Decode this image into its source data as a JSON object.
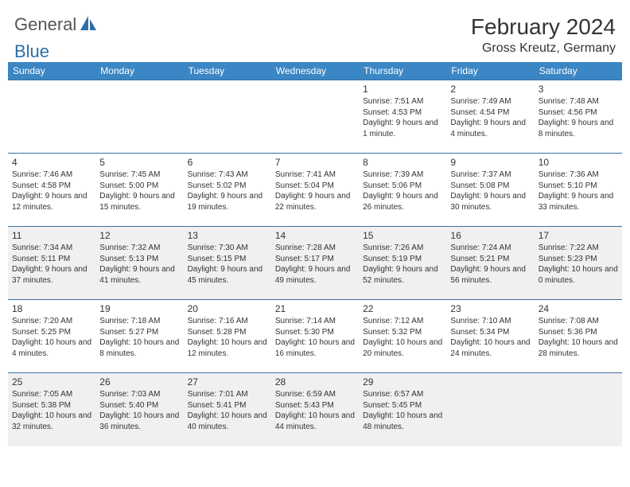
{
  "logo": {
    "part1": "General",
    "part2": "Blue"
  },
  "title": "February 2024",
  "location": "Gross Kreutz, Germany",
  "colors": {
    "header_bg": "#3b86c4",
    "border": "#3b6fa0",
    "alt_bg": "#f0f0f0",
    "logo_blue": "#2d6ea8"
  },
  "dayHeaders": [
    "Sunday",
    "Monday",
    "Tuesday",
    "Wednesday",
    "Thursday",
    "Friday",
    "Saturday"
  ],
  "weeks": [
    [
      {
        "day": "",
        "sunrise": "",
        "sunset": "",
        "daylight": "",
        "alt": false
      },
      {
        "day": "",
        "sunrise": "",
        "sunset": "",
        "daylight": "",
        "alt": false
      },
      {
        "day": "",
        "sunrise": "",
        "sunset": "",
        "daylight": "",
        "alt": false
      },
      {
        "day": "",
        "sunrise": "",
        "sunset": "",
        "daylight": "",
        "alt": false
      },
      {
        "day": "1",
        "sunrise": "Sunrise: 7:51 AM",
        "sunset": "Sunset: 4:53 PM",
        "daylight": "Daylight: 9 hours and 1 minute.",
        "alt": false
      },
      {
        "day": "2",
        "sunrise": "Sunrise: 7:49 AM",
        "sunset": "Sunset: 4:54 PM",
        "daylight": "Daylight: 9 hours and 4 minutes.",
        "alt": false
      },
      {
        "day": "3",
        "sunrise": "Sunrise: 7:48 AM",
        "sunset": "Sunset: 4:56 PM",
        "daylight": "Daylight: 9 hours and 8 minutes.",
        "alt": false
      }
    ],
    [
      {
        "day": "4",
        "sunrise": "Sunrise: 7:46 AM",
        "sunset": "Sunset: 4:58 PM",
        "daylight": "Daylight: 9 hours and 12 minutes.",
        "alt": false
      },
      {
        "day": "5",
        "sunrise": "Sunrise: 7:45 AM",
        "sunset": "Sunset: 5:00 PM",
        "daylight": "Daylight: 9 hours and 15 minutes.",
        "alt": false
      },
      {
        "day": "6",
        "sunrise": "Sunrise: 7:43 AM",
        "sunset": "Sunset: 5:02 PM",
        "daylight": "Daylight: 9 hours and 19 minutes.",
        "alt": false
      },
      {
        "day": "7",
        "sunrise": "Sunrise: 7:41 AM",
        "sunset": "Sunset: 5:04 PM",
        "daylight": "Daylight: 9 hours and 22 minutes.",
        "alt": false
      },
      {
        "day": "8",
        "sunrise": "Sunrise: 7:39 AM",
        "sunset": "Sunset: 5:06 PM",
        "daylight": "Daylight: 9 hours and 26 minutes.",
        "alt": false
      },
      {
        "day": "9",
        "sunrise": "Sunrise: 7:37 AM",
        "sunset": "Sunset: 5:08 PM",
        "daylight": "Daylight: 9 hours and 30 minutes.",
        "alt": false
      },
      {
        "day": "10",
        "sunrise": "Sunrise: 7:36 AM",
        "sunset": "Sunset: 5:10 PM",
        "daylight": "Daylight: 9 hours and 33 minutes.",
        "alt": false
      }
    ],
    [
      {
        "day": "11",
        "sunrise": "Sunrise: 7:34 AM",
        "sunset": "Sunset: 5:11 PM",
        "daylight": "Daylight: 9 hours and 37 minutes.",
        "alt": true
      },
      {
        "day": "12",
        "sunrise": "Sunrise: 7:32 AM",
        "sunset": "Sunset: 5:13 PM",
        "daylight": "Daylight: 9 hours and 41 minutes.",
        "alt": true
      },
      {
        "day": "13",
        "sunrise": "Sunrise: 7:30 AM",
        "sunset": "Sunset: 5:15 PM",
        "daylight": "Daylight: 9 hours and 45 minutes.",
        "alt": true
      },
      {
        "day": "14",
        "sunrise": "Sunrise: 7:28 AM",
        "sunset": "Sunset: 5:17 PM",
        "daylight": "Daylight: 9 hours and 49 minutes.",
        "alt": true
      },
      {
        "day": "15",
        "sunrise": "Sunrise: 7:26 AM",
        "sunset": "Sunset: 5:19 PM",
        "daylight": "Daylight: 9 hours and 52 minutes.",
        "alt": true
      },
      {
        "day": "16",
        "sunrise": "Sunrise: 7:24 AM",
        "sunset": "Sunset: 5:21 PM",
        "daylight": "Daylight: 9 hours and 56 minutes.",
        "alt": true
      },
      {
        "day": "17",
        "sunrise": "Sunrise: 7:22 AM",
        "sunset": "Sunset: 5:23 PM",
        "daylight": "Daylight: 10 hours and 0 minutes.",
        "alt": true
      }
    ],
    [
      {
        "day": "18",
        "sunrise": "Sunrise: 7:20 AM",
        "sunset": "Sunset: 5:25 PM",
        "daylight": "Daylight: 10 hours and 4 minutes.",
        "alt": false
      },
      {
        "day": "19",
        "sunrise": "Sunrise: 7:18 AM",
        "sunset": "Sunset: 5:27 PM",
        "daylight": "Daylight: 10 hours and 8 minutes.",
        "alt": false
      },
      {
        "day": "20",
        "sunrise": "Sunrise: 7:16 AM",
        "sunset": "Sunset: 5:28 PM",
        "daylight": "Daylight: 10 hours and 12 minutes.",
        "alt": false
      },
      {
        "day": "21",
        "sunrise": "Sunrise: 7:14 AM",
        "sunset": "Sunset: 5:30 PM",
        "daylight": "Daylight: 10 hours and 16 minutes.",
        "alt": false
      },
      {
        "day": "22",
        "sunrise": "Sunrise: 7:12 AM",
        "sunset": "Sunset: 5:32 PM",
        "daylight": "Daylight: 10 hours and 20 minutes.",
        "alt": false
      },
      {
        "day": "23",
        "sunrise": "Sunrise: 7:10 AM",
        "sunset": "Sunset: 5:34 PM",
        "daylight": "Daylight: 10 hours and 24 minutes.",
        "alt": false
      },
      {
        "day": "24",
        "sunrise": "Sunrise: 7:08 AM",
        "sunset": "Sunset: 5:36 PM",
        "daylight": "Daylight: 10 hours and 28 minutes.",
        "alt": false
      }
    ],
    [
      {
        "day": "25",
        "sunrise": "Sunrise: 7:05 AM",
        "sunset": "Sunset: 5:38 PM",
        "daylight": "Daylight: 10 hours and 32 minutes.",
        "alt": true
      },
      {
        "day": "26",
        "sunrise": "Sunrise: 7:03 AM",
        "sunset": "Sunset: 5:40 PM",
        "daylight": "Daylight: 10 hours and 36 minutes.",
        "alt": true
      },
      {
        "day": "27",
        "sunrise": "Sunrise: 7:01 AM",
        "sunset": "Sunset: 5:41 PM",
        "daylight": "Daylight: 10 hours and 40 minutes.",
        "alt": true
      },
      {
        "day": "28",
        "sunrise": "Sunrise: 6:59 AM",
        "sunset": "Sunset: 5:43 PM",
        "daylight": "Daylight: 10 hours and 44 minutes.",
        "alt": true
      },
      {
        "day": "29",
        "sunrise": "Sunrise: 6:57 AM",
        "sunset": "Sunset: 5:45 PM",
        "daylight": "Daylight: 10 hours and 48 minutes.",
        "alt": true
      },
      {
        "day": "",
        "sunrise": "",
        "sunset": "",
        "daylight": "",
        "alt": true
      },
      {
        "day": "",
        "sunrise": "",
        "sunset": "",
        "daylight": "",
        "alt": true
      }
    ]
  ]
}
